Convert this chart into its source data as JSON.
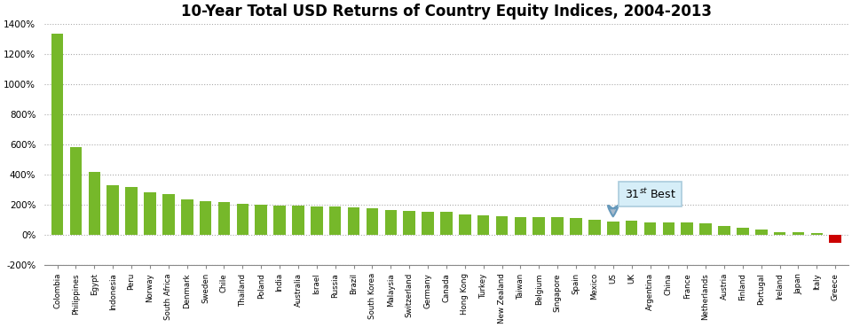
{
  "title": "10-Year Total USD Returns of Country Equity Indices, 2004-2013",
  "categories": [
    "Colombia",
    "Philippines",
    "Egypt",
    "Indonesia",
    "Peru",
    "Norway",
    "South Africa",
    "Denmark",
    "Sweden",
    "Chile",
    "Thailand",
    "Poland",
    "India",
    "Australia",
    "Israel",
    "Russia",
    "Brazil",
    "South Korea",
    "Malaysia",
    "Switzerland",
    "Germany",
    "Canada",
    "Hong Kong",
    "Turkey",
    "New Zealand",
    "Taiwan",
    "Belgium",
    "Singapore",
    "Spain",
    "Mexico",
    "US",
    "UK",
    "Argentina",
    "China",
    "France",
    "Netherlands",
    "Austria",
    "Finland",
    "Portugal",
    "Ireland",
    "Japan",
    "Italy",
    "Greece"
  ],
  "values": [
    1330,
    580,
    415,
    330,
    315,
    280,
    270,
    235,
    225,
    215,
    205,
    200,
    195,
    195,
    185,
    185,
    180,
    175,
    165,
    160,
    155,
    150,
    135,
    130,
    125,
    120,
    120,
    115,
    110,
    100,
    90,
    95,
    85,
    80,
    80,
    75,
    60,
    45,
    35,
    15,
    20,
    10,
    -55
  ],
  "bar_color_green": "#76b82a",
  "bar_color_red": "#cc0000",
  "us_index": 30,
  "annotation_box_color": "#d6eef8",
  "annotation_box_edge": "#aaccdd",
  "ylim": [
    -200,
    1400
  ],
  "yticks": [
    -200,
    0,
    200,
    400,
    600,
    800,
    1000,
    1200,
    1400
  ],
  "ytick_labels": [
    "-200%",
    "0%",
    "200%",
    "400%",
    "600%",
    "800%",
    "1000%",
    "1200%",
    "1400%"
  ],
  "grid_color": "#aaaaaa",
  "title_fontsize": 12
}
